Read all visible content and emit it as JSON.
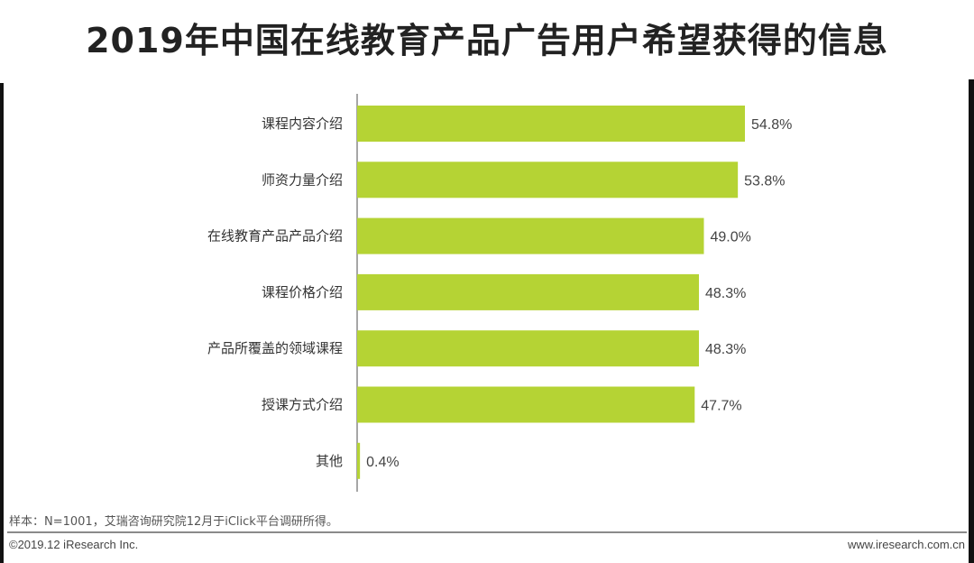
{
  "title": "2019年中国在线教育产品广告用户希望获得的信息",
  "note": "样本：N=1001，艾瑞咨询研究院12月于iClick平台调研所得。",
  "footer": {
    "copyright": "©2019.12 iResearch Inc.",
    "website": "www.iresearch.com.cn"
  },
  "colors": {
    "bar": "#b5d334",
    "axis": "#888888"
  },
  "chart_data": {
    "type": "bar",
    "orientation": "horizontal",
    "title": "2019年中国在线教育产品广告用户希望获得的信息",
    "categories": [
      "课程内容介绍",
      "师资力量介绍",
      "在线教育产品产品介绍",
      "课程价格介绍",
      "产品所覆盖的领域课程",
      "授课方式介绍",
      "其他"
    ],
    "values": [
      54.8,
      53.8,
      49.0,
      48.3,
      48.3,
      47.7,
      0.4
    ],
    "labels": [
      "54.8%",
      "53.8%",
      "49.0%",
      "48.3%",
      "48.3%",
      "47.7%",
      "0.4%"
    ],
    "unit": "%",
    "xlim": [
      0,
      60
    ],
    "grid": false,
    "legend": "none"
  }
}
